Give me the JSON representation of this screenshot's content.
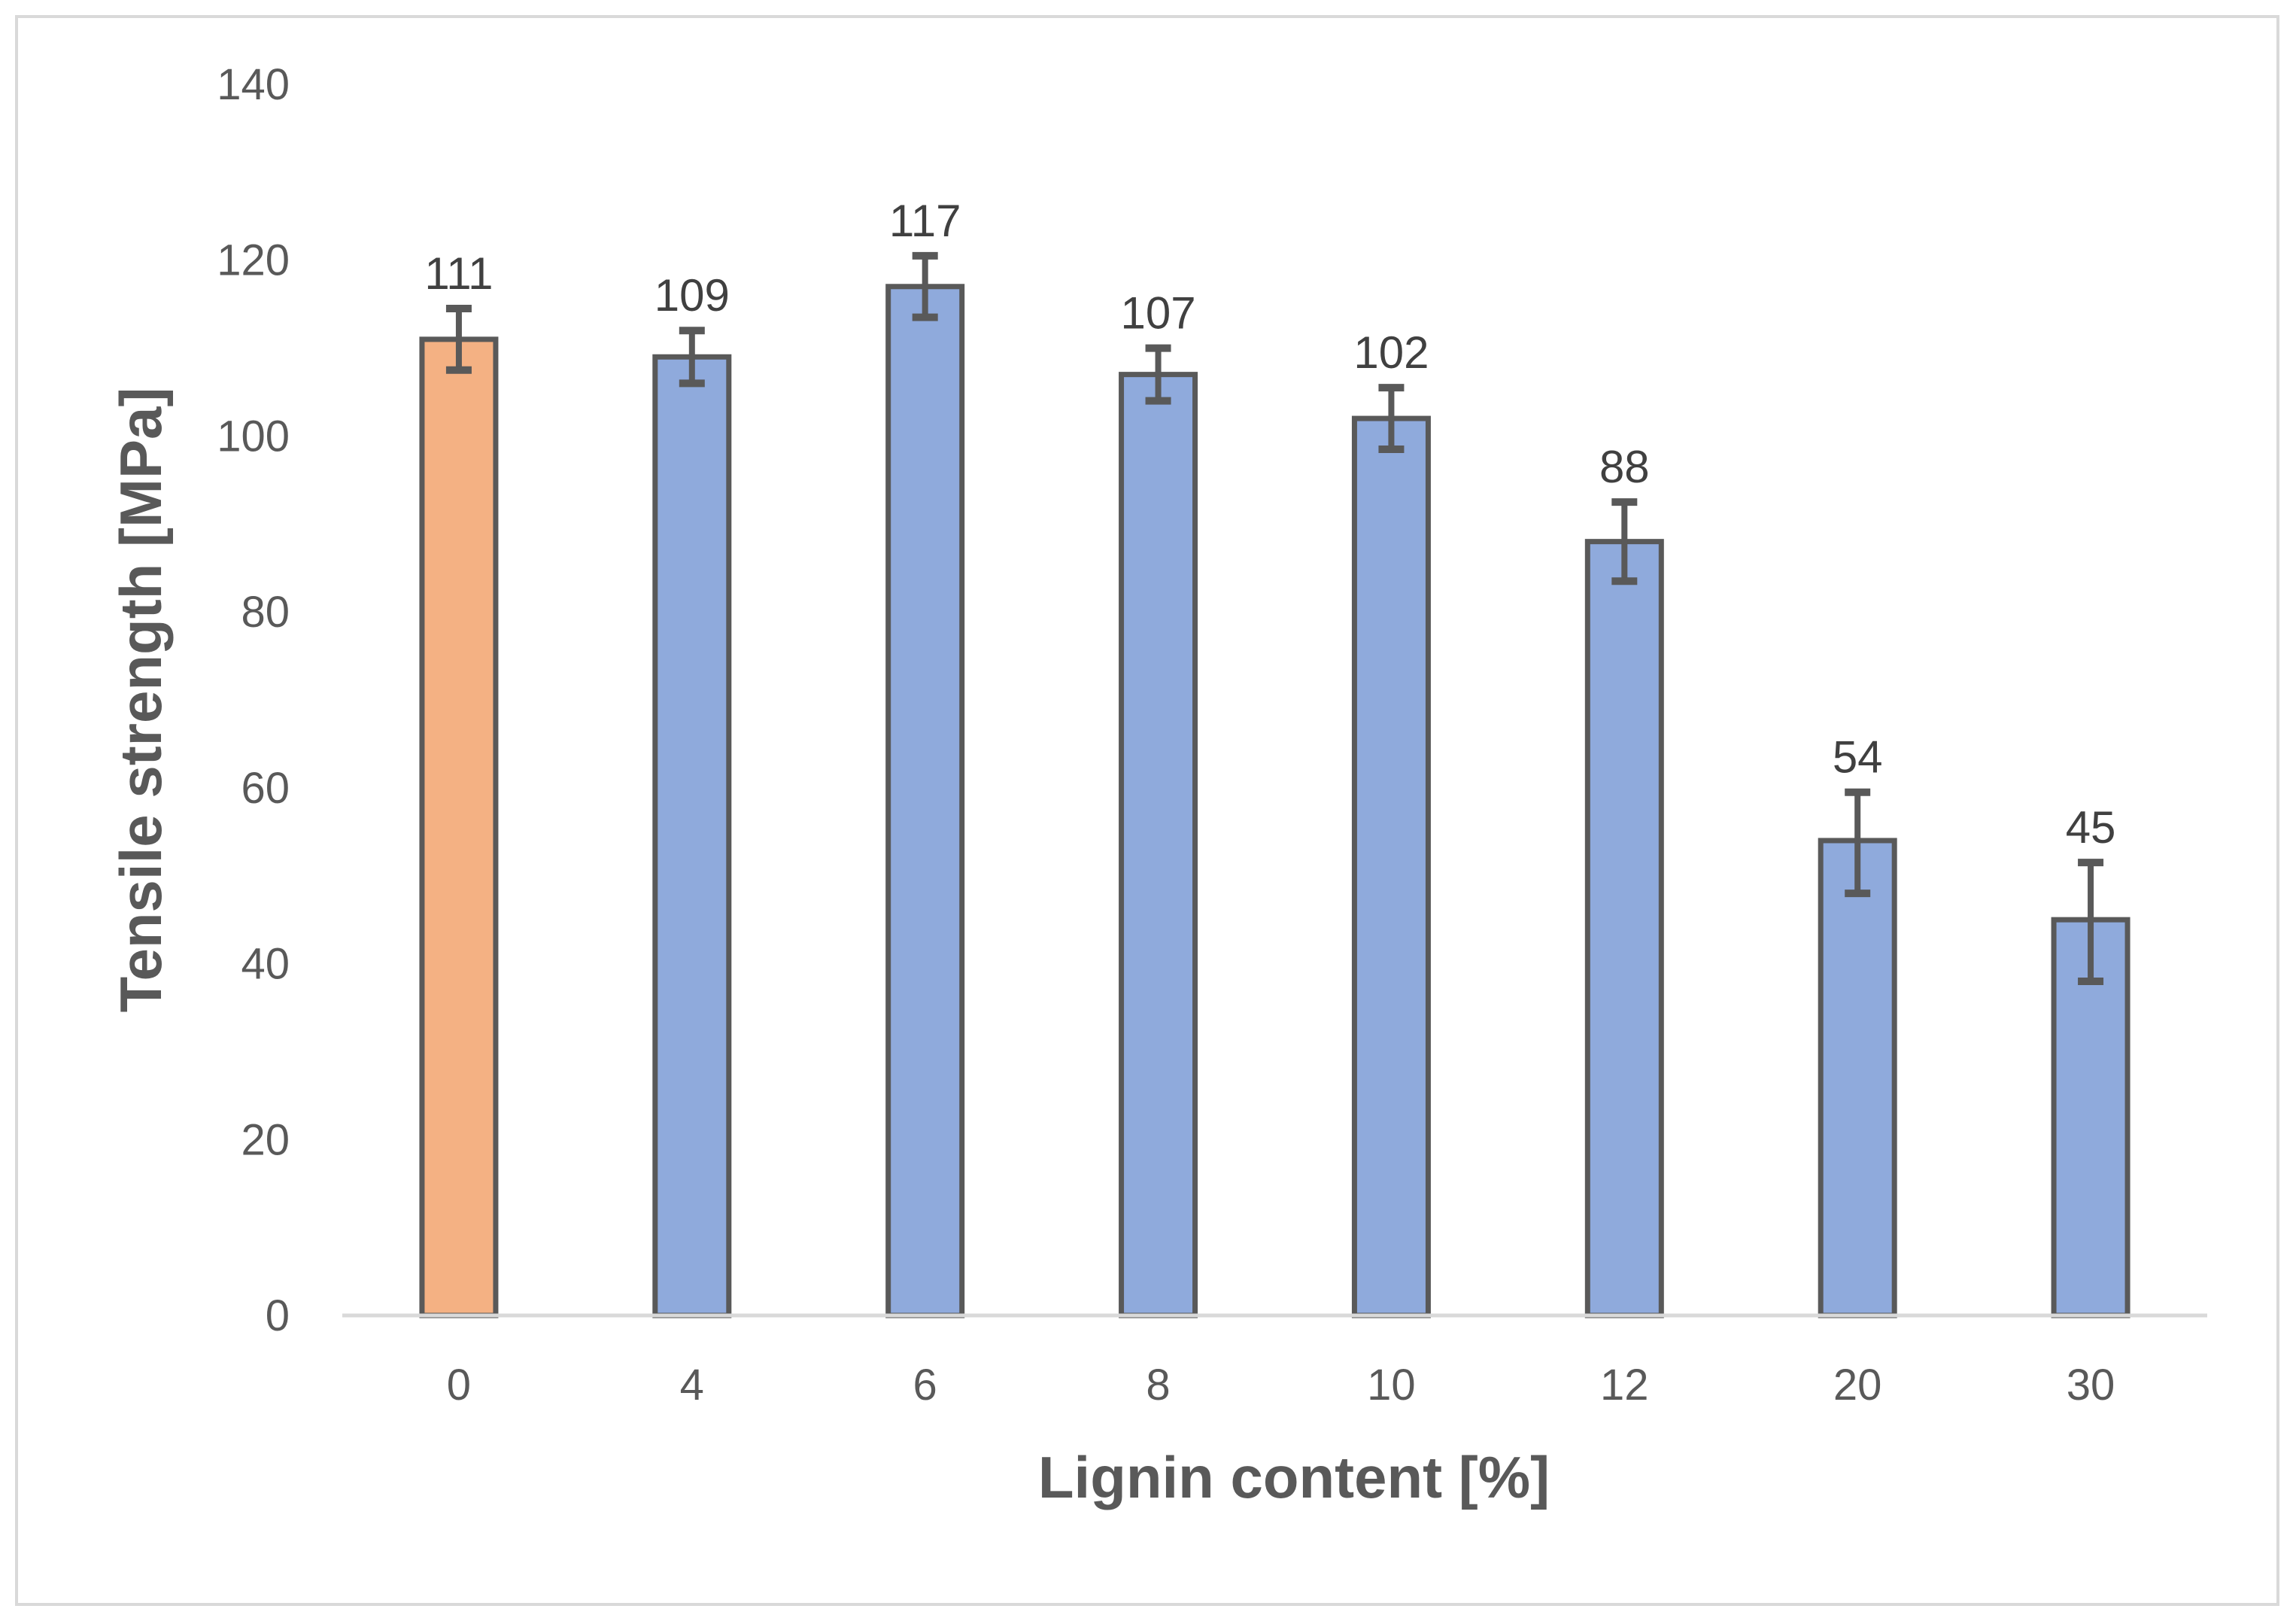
{
  "chart_data": {
    "type": "bar",
    "xlabel": "Lignin content [%]",
    "ylabel": "Tensile strength [MPa]",
    "ylim": [
      0,
      140
    ],
    "yticks": [
      0,
      20,
      40,
      60,
      80,
      100,
      120,
      140
    ],
    "grid": false,
    "legend": "none",
    "categories": [
      "0",
      "4",
      "6",
      "8",
      "10",
      "12",
      "20",
      "30"
    ],
    "values": [
      111,
      109,
      117,
      107,
      102,
      88,
      54,
      45
    ],
    "data_labels": [
      "111",
      "109",
      "117",
      "107",
      "102",
      "88",
      "54",
      "45"
    ],
    "error_low": [
      107.5,
      106,
      113.5,
      104,
      98.5,
      83.5,
      48,
      38
    ],
    "error_high": [
      114.5,
      112,
      120.5,
      110,
      105.5,
      92.5,
      59.5,
      51.5
    ],
    "colors": {
      "reference_bar": "#f4b183",
      "bars": "#8faadc",
      "bar_outline": "#595959",
      "error_bars": "#595959",
      "axis_line": "#d9d9d9"
    }
  }
}
